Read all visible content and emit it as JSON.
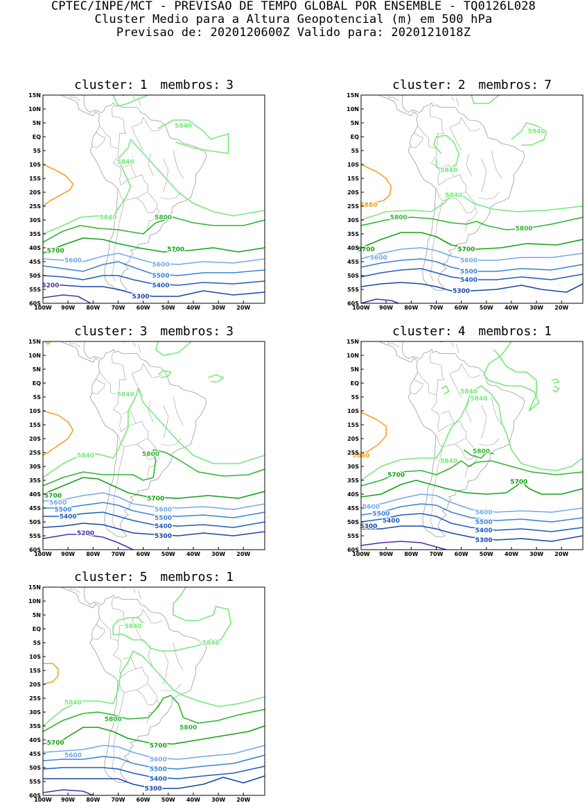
{
  "header": {
    "line1": "CPTEC/INPE/MCT - PREVISAO DE TEMPO GLOBAL POR ENSEMBLE - TQ0126L028",
    "line2": "Cluster Medio para a Altura Geopotencial (m) em 500 hPa",
    "line3": "Previsao de: 2020120600Z   Valido para: 2020121018Z"
  },
  "axes": {
    "lat_labels": [
      "15N",
      "10N",
      "5N",
      "EQ",
      "5S",
      "10S",
      "15S",
      "20S",
      "25S",
      "30S",
      "35S",
      "40S",
      "45S",
      "50S",
      "55S",
      "60S"
    ],
    "lon_labels": [
      "100W",
      "90W",
      "80W",
      "70W",
      "60W",
      "50W",
      "40W",
      "30W",
      "20W"
    ]
  },
  "colors": {
    "c5840": "#78e878",
    "c5800": "#2fb52f",
    "c5700": "#15a015",
    "c5600": "#70aaea",
    "c5500": "#3a82d8",
    "c5400": "#1d5cc0",
    "c5300": "#1844a8",
    "c5200": "#4a2fa8",
    "c5880": "#f5a020",
    "coast": "#9a9a9a"
  },
  "panels": [
    {
      "cluster_label": "cluster:",
      "cluster_num": "1",
      "membros_label": "membros:",
      "membros_num": "3",
      "contour_labels": [
        {
          "text": "5840",
          "lon": -44,
          "lat": 4,
          "c": "c5840"
        },
        {
          "text": "5840",
          "lon": -67,
          "lat": -9,
          "c": "c5840"
        },
        {
          "text": "5840",
          "lon": -74,
          "lat": -29,
          "c": "c5840"
        },
        {
          "text": "5800",
          "lon": -52,
          "lat": -29,
          "c": "c5800"
        },
        {
          "text": "5700",
          "lon": -95,
          "lat": -41,
          "c": "c5700"
        },
        {
          "text": "5700",
          "lon": -47,
          "lat": -40.5,
          "c": "c5700"
        },
        {
          "text": "5600",
          "lon": -88,
          "lat": -44.5,
          "c": "c5600"
        },
        {
          "text": "5600",
          "lon": -53,
          "lat": -46,
          "c": "c5600"
        },
        {
          "text": "5500",
          "lon": -53,
          "lat": -50,
          "c": "c5500"
        },
        {
          "text": "5400",
          "lon": -53,
          "lat": -53.5,
          "c": "c5400"
        },
        {
          "text": "5300",
          "lon": -61,
          "lat": -57.5,
          "c": "c5300"
        },
        {
          "text": "5200",
          "lon": -97,
          "lat": -53.5,
          "c": "c5200"
        }
      ]
    },
    {
      "cluster_label": "cluster:",
      "cluster_num": "2",
      "membros_label": "membros:",
      "membros_num": "7",
      "contour_labels": [
        {
          "text": "5840",
          "lon": -30,
          "lat": 2,
          "c": "c5840"
        },
        {
          "text": "5840",
          "lon": -65,
          "lat": -12,
          "c": "c5840"
        },
        {
          "text": "5840",
          "lon": -63,
          "lat": -21,
          "c": "c5840"
        },
        {
          "text": "5880",
          "lon": -97,
          "lat": -24.5,
          "c": "c5880"
        },
        {
          "text": "5800",
          "lon": -85,
          "lat": -29,
          "c": "c5800"
        },
        {
          "text": "5800",
          "lon": -35,
          "lat": -33,
          "c": "c5800"
        },
        {
          "text": "5700",
          "lon": -98,
          "lat": -40.5,
          "c": "c5700"
        },
        {
          "text": "5700",
          "lon": -58,
          "lat": -40.5,
          "c": "c5700"
        },
        {
          "text": "5600",
          "lon": -93,
          "lat": -43.5,
          "c": "c5600"
        },
        {
          "text": "5600",
          "lon": -57,
          "lat": -44.5,
          "c": "c5600"
        },
        {
          "text": "5500",
          "lon": -57,
          "lat": -48.5,
          "c": "c5500"
        },
        {
          "text": "5400",
          "lon": -57,
          "lat": -51.5,
          "c": "c5400"
        },
        {
          "text": "5300",
          "lon": -60,
          "lat": -55.5,
          "c": "c5300"
        }
      ]
    },
    {
      "cluster_label": "cluster:",
      "cluster_num": "3",
      "membros_label": "membros:",
      "membros_num": "3",
      "contour_labels": [
        {
          "text": "5840",
          "lon": -67,
          "lat": -4,
          "c": "c5840"
        },
        {
          "text": "5840",
          "lon": -83,
          "lat": -26,
          "c": "c5840"
        },
        {
          "text": "5800",
          "lon": -57,
          "lat": -25.5,
          "c": "c5800"
        },
        {
          "text": "5700",
          "lon": -96,
          "lat": -40.5,
          "c": "c5700"
        },
        {
          "text": "5700",
          "lon": -55,
          "lat": -41.5,
          "c": "c5700"
        },
        {
          "text": "5600",
          "lon": -94,
          "lat": -43,
          "c": "c5600"
        },
        {
          "text": "5600",
          "lon": -52,
          "lat": -45.5,
          "c": "c5600"
        },
        {
          "text": "5500",
          "lon": -92,
          "lat": -45.5,
          "c": "c5500"
        },
        {
          "text": "5500",
          "lon": -52,
          "lat": -48.5,
          "c": "c5500"
        },
        {
          "text": "5400",
          "lon": -90,
          "lat": -48,
          "c": "c5400"
        },
        {
          "text": "5400",
          "lon": -52,
          "lat": -51.5,
          "c": "c5400"
        },
        {
          "text": "5300",
          "lon": -52,
          "lat": -55,
          "c": "c5300"
        },
        {
          "text": "5200",
          "lon": -83,
          "lat": -54,
          "c": "c5200"
        }
      ]
    },
    {
      "cluster_label": "cluster:",
      "cluster_num": "4",
      "membros_label": "membros:",
      "membros_num": "1",
      "contour_labels": [
        {
          "text": "5840",
          "lon": -57,
          "lat": -3,
          "c": "c5840"
        },
        {
          "text": "5840",
          "lon": -53,
          "lat": -5.5,
          "c": "c5840"
        },
        {
          "text": "5840",
          "lon": -65,
          "lat": -28,
          "c": "c5840"
        },
        {
          "text": "5800",
          "lon": -52,
          "lat": -24.5,
          "c": "c5800"
        },
        {
          "text": "5880",
          "lon": -100,
          "lat": -26,
          "c": "c5880"
        },
        {
          "text": "5700",
          "lon": -86,
          "lat": -33,
          "c": "c5700"
        },
        {
          "text": "5700",
          "lon": -37,
          "lat": -35.5,
          "c": "c5700"
        },
        {
          "text": "5600",
          "lon": -96,
          "lat": -44.5,
          "c": "c5600"
        },
        {
          "text": "5600",
          "lon": -51,
          "lat": -46.5,
          "c": "c5600"
        },
        {
          "text": "5500",
          "lon": -92,
          "lat": -47,
          "c": "c5500"
        },
        {
          "text": "5500",
          "lon": -51,
          "lat": -50,
          "c": "c5500"
        },
        {
          "text": "5400",
          "lon": -88,
          "lat": -49.5,
          "c": "c5400"
        },
        {
          "text": "5400",
          "lon": -51,
          "lat": -53,
          "c": "c5400"
        },
        {
          "text": "5300",
          "lon": -97,
          "lat": -51.5,
          "c": "c5300"
        },
        {
          "text": "5300",
          "lon": -51,
          "lat": -56.5,
          "c": "c5300"
        }
      ]
    },
    {
      "cluster_label": "cluster:",
      "cluster_num": "5",
      "membros_label": "membros:",
      "membros_num": "1",
      "contour_labels": [
        {
          "text": "5840",
          "lon": -64,
          "lat": 1,
          "c": "c5840"
        },
        {
          "text": "5840",
          "lon": -33,
          "lat": -5,
          "c": "c5840"
        },
        {
          "text": "5840",
          "lon": -88,
          "lat": -26.5,
          "c": "c5840"
        },
        {
          "text": "5800",
          "lon": -72,
          "lat": -32.5,
          "c": "c5800"
        },
        {
          "text": "5800",
          "lon": -42,
          "lat": -35.5,
          "c": "c5800"
        },
        {
          "text": "5700",
          "lon": -95,
          "lat": -41,
          "c": "c5700"
        },
        {
          "text": "5700",
          "lon": -54,
          "lat": -42,
          "c": "c5700"
        },
        {
          "text": "5600",
          "lon": -88,
          "lat": -45.5,
          "c": "c5600"
        },
        {
          "text": "5600",
          "lon": -54,
          "lat": -47,
          "c": "c5600"
        },
        {
          "text": "5500",
          "lon": -54,
          "lat": -50.5,
          "c": "c5500"
        },
        {
          "text": "5400",
          "lon": -54,
          "lat": -54,
          "c": "c5400"
        },
        {
          "text": "5300",
          "lon": -56,
          "lat": -57.5,
          "c": "c5300"
        }
      ]
    }
  ]
}
